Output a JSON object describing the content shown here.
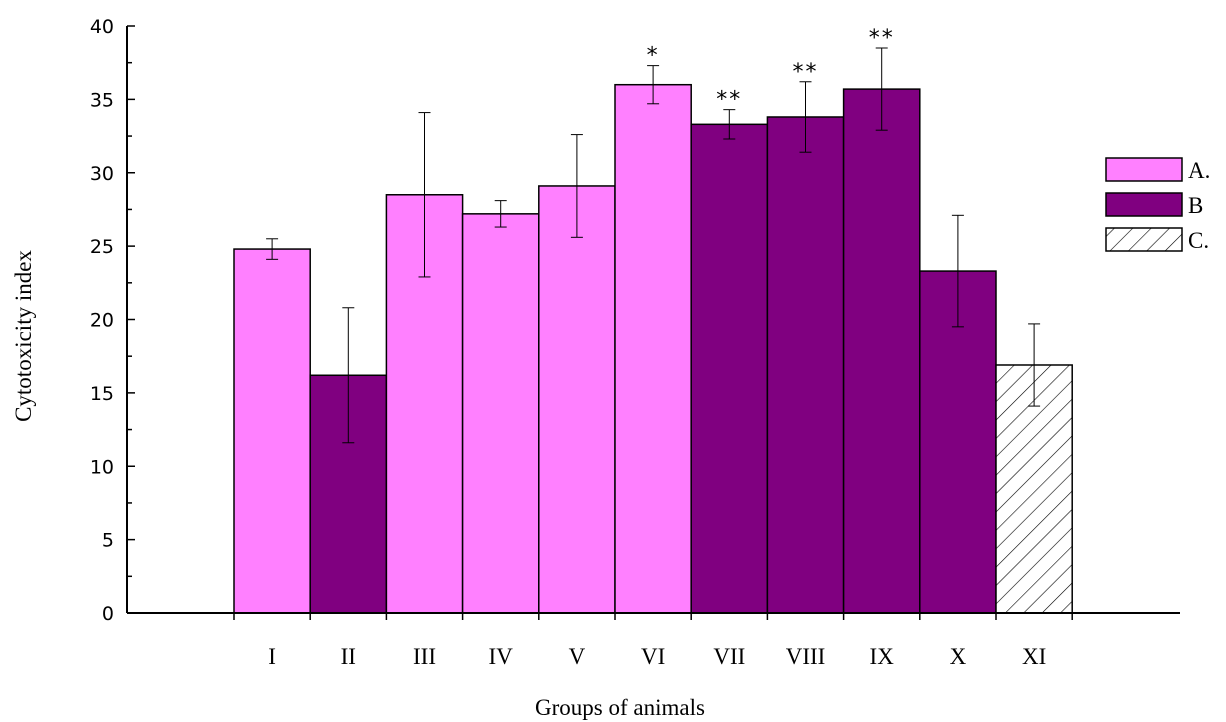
{
  "chart_data": {
    "type": "bar",
    "title": "",
    "xlabel": "Groups of animals",
    "ylabel": "Cytotoxicity index",
    "ylim": [
      0,
      40
    ],
    "yticks": [
      "0",
      "5",
      "10",
      "15",
      "20",
      "25",
      "30",
      "35",
      "40"
    ],
    "categories": [
      "I",
      "II",
      "III",
      "IV",
      "V",
      "VI",
      "VII",
      "VIII",
      "IX",
      "X",
      "XI"
    ],
    "values": [
      24.8,
      16.2,
      28.5,
      27.2,
      29.1,
      36.0,
      33.3,
      33.8,
      35.7,
      23.3,
      16.9
    ],
    "errors": [
      0.7,
      4.6,
      5.6,
      0.9,
      3.5,
      1.3,
      1.0,
      2.4,
      2.8,
      3.8,
      2.8
    ],
    "groups": [
      "A",
      "B",
      "A",
      "A",
      "A",
      "A",
      "B",
      "B",
      "B",
      "B",
      "C"
    ],
    "significance": [
      "",
      "",
      "",
      "",
      "",
      "*",
      "**",
      "**",
      "**",
      "",
      ""
    ],
    "legend": [
      {
        "key": "A",
        "label": "A.",
        "color": "#ff80ff",
        "pattern": "solid"
      },
      {
        "key": "B",
        "label": "B",
        "color": "#800080",
        "pattern": "solid"
      },
      {
        "key": "C",
        "label": "C.",
        "color": "#ffffff",
        "pattern": "hatch"
      }
    ],
    "legend_position": "right",
    "grid": false
  }
}
